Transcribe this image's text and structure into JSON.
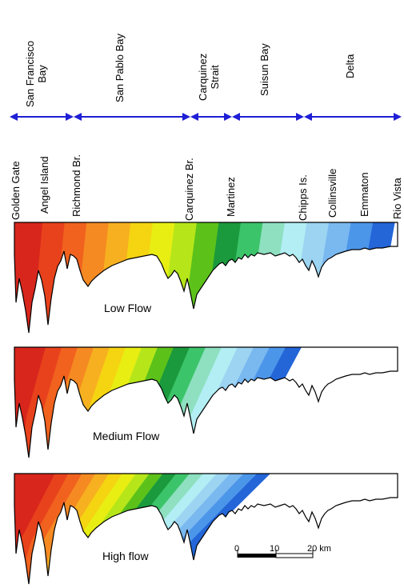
{
  "regions": [
    {
      "id": "sf",
      "lines": [
        "San Francisco",
        "Bay"
      ]
    },
    {
      "id": "sp",
      "lines": [
        "San Pablo Bay"
      ]
    },
    {
      "id": "cs",
      "lines": [
        "Carquinez",
        "Strait"
      ]
    },
    {
      "id": "su",
      "lines": [
        "Suisun Bay"
      ]
    },
    {
      "id": "de",
      "lines": [
        "Delta"
      ]
    }
  ],
  "locations": [
    "Golden Gate",
    "Angel Island",
    "Richmond Br.",
    "Carquinez Br.",
    "Martinez",
    "Chipps Is.",
    "Collinsville",
    "Emmaton",
    "Rio Vista"
  ],
  "panels": [
    {
      "id": "low",
      "label": "Low Flow"
    },
    {
      "id": "medium",
      "label": "Medium Flow"
    },
    {
      "id": "high",
      "label": "High flow"
    }
  ],
  "scale": {
    "ticks": [
      "0",
      "10",
      "20 km"
    ]
  },
  "colors": {
    "arrow": "#1f1fd6",
    "ramp": [
      "#d9261c",
      "#e8421c",
      "#f0621e",
      "#f58a22",
      "#f7b01f",
      "#f5d412",
      "#e8ee12",
      "#b6e61a",
      "#5cc21a",
      "#1a9a3c",
      "#3cc46a",
      "#8ee0c0",
      "#b2eef4",
      "#9cd4f2",
      "#7ab8f0",
      "#4c96ea",
      "#2466d8"
    ]
  }
}
